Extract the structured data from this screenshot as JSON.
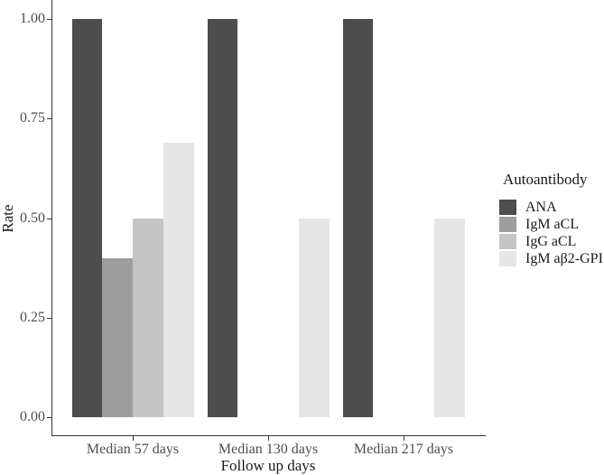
{
  "chart_data": {
    "type": "bar",
    "title": "",
    "xlabel": "Follow up days",
    "ylabel": "Rate",
    "categories": [
      "Median 57 days",
      "Median 130 days",
      "Median 217 days"
    ],
    "series": [
      {
        "name": "ANA",
        "color": "#4d4d4d",
        "values": [
          1.0,
          1.0,
          1.0
        ]
      },
      {
        "name": "IgM aCL",
        "color": "#9e9e9e",
        "values": [
          0.4,
          0,
          0
        ]
      },
      {
        "name": "IgG aCL",
        "color": "#c5c5c5",
        "values": [
          0.5,
          0,
          0
        ]
      },
      {
        "name": "IgM aβ2-GPI",
        "color": "#e6e6e6",
        "values": [
          0.69,
          0.5,
          0.5
        ]
      }
    ],
    "ylim": [
      0,
      1
    ],
    "yticks": [
      0,
      0.25,
      0.5,
      0.75,
      1
    ],
    "ytick_labels": [
      "0.00",
      "0.25",
      "0.50",
      "0.75",
      "1.00"
    ],
    "grid": false,
    "legend": {
      "title": "Autoantibody",
      "position": "right"
    },
    "colors": {
      "axis_line": "#333333",
      "tick_text": "#4d4d4d",
      "title_text": "#1a1a1a",
      "background": "#ffffff"
    }
  }
}
